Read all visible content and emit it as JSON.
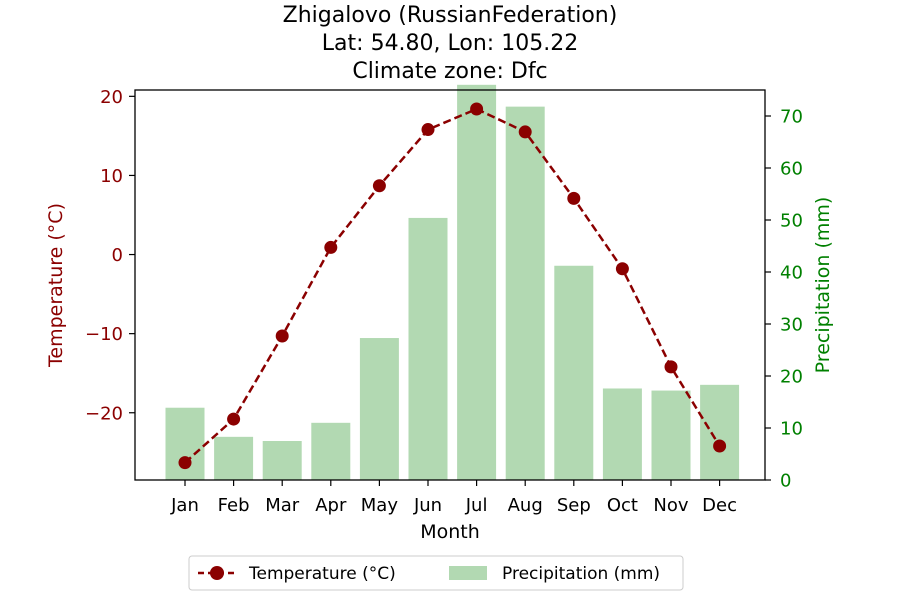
{
  "chart_data": {
    "type": "bar+line",
    "title_lines": [
      "Zhigalovo (RussianFederation)",
      "Lat: 54.80, Lon: 105.22",
      "Climate zone: Dfc"
    ],
    "xlabel": "Month",
    "ylabel_left": "Temperature (°C)",
    "ylabel_right": "Precipitation (mm)",
    "categories": [
      "Jan",
      "Feb",
      "Mar",
      "Apr",
      "May",
      "Jun",
      "Jul",
      "Aug",
      "Sep",
      "Oct",
      "Nov",
      "Dec"
    ],
    "temperature": {
      "name": "Temperature (°C)",
      "values": [
        -26.3,
        -20.8,
        -10.3,
        0.9,
        8.7,
        15.8,
        18.4,
        15.5,
        7.1,
        -1.8,
        -14.2,
        -24.2
      ],
      "color": "#8b0000"
    },
    "precipitation": {
      "name": "Precipitation (mm)",
      "values": [
        13.9,
        8.3,
        7.5,
        11.0,
        27.3,
        50.4,
        76.0,
        71.8,
        41.2,
        17.6,
        17.2,
        18.3
      ],
      "color": "#b2d9b2"
    },
    "ylim_left": [
      -28.5,
      20.8
    ],
    "ylim_right": [
      0,
      75
    ],
    "yticks_left": [
      -20,
      -10,
      0,
      10,
      20
    ],
    "yticks_right": [
      0,
      10,
      20,
      30,
      40,
      50,
      60,
      70
    ],
    "left_axis_color": "#8b0000",
    "right_axis_color": "#008000",
    "legend_position": "bottom-center",
    "grid": false
  }
}
